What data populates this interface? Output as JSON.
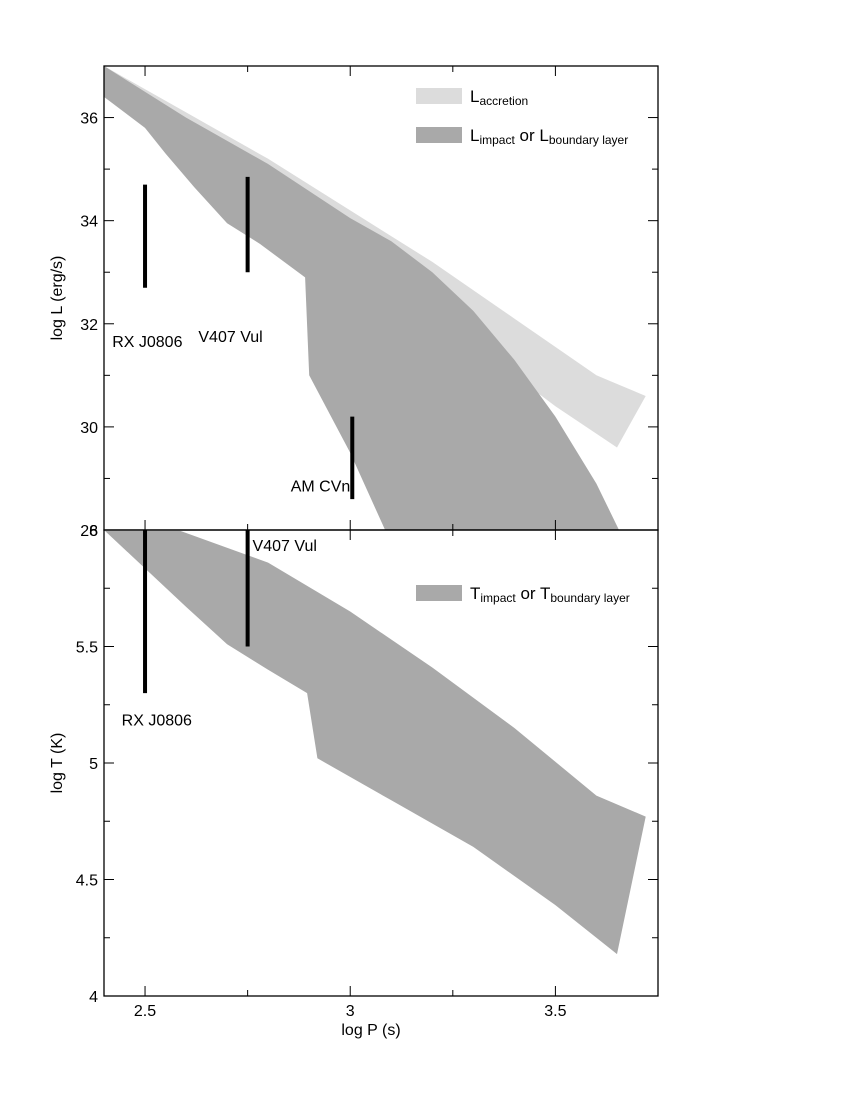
{
  "chart_data": [
    {
      "type": "area",
      "panel": "top",
      "xlim": [
        2.4,
        3.75
      ],
      "ylim": [
        28,
        37
      ],
      "ylabel": "log L (erg/s)",
      "yticks": [
        28,
        30,
        32,
        34,
        36
      ],
      "ytick_labels": [
        "28",
        "30",
        "32",
        "34",
        "36"
      ],
      "legend": {
        "placement": "top-right",
        "entries": [
          {
            "series": "accretion",
            "text": "L",
            "sub": "accretion",
            "text2": "",
            "sub2": ""
          },
          {
            "series": "impact",
            "text": "L",
            "sub": "impact",
            "text2": " or L",
            "sub2": "boundary layer"
          }
        ]
      },
      "series": [
        {
          "id": "accretion",
          "color": "#dcdcdc",
          "outline": [
            [
              2.4,
              37
            ],
            [
              2.6,
              36.1
            ],
            [
              2.8,
              35.2
            ],
            [
              3.0,
              34.2
            ],
            [
              3.2,
              33.2
            ],
            [
              3.4,
              32.1
            ],
            [
              3.6,
              31.0
            ],
            [
              3.72,
              30.6
            ],
            [
              3.65,
              29.6
            ],
            [
              3.5,
              30.4
            ],
            [
              3.3,
              31.6
            ],
            [
              3.1,
              32.8
            ],
            [
              2.9,
              33.9
            ],
            [
              2.7,
              35.0
            ],
            [
              2.5,
              36.0
            ],
            [
              2.4,
              36.4
            ]
          ]
        },
        {
          "id": "impact",
          "color": "#a9a9a9",
          "outline": [
            [
              2.4,
              37
            ],
            [
              2.6,
              36.0
            ],
            [
              2.8,
              35.1
            ],
            [
              3.0,
              34.05
            ],
            [
              3.1,
              33.6
            ],
            [
              3.2,
              33.0
            ],
            [
              3.3,
              32.25
            ],
            [
              3.4,
              31.3
            ],
            [
              3.5,
              30.2
            ],
            [
              3.6,
              28.9
            ],
            [
              3.655,
              28.0
            ],
            [
              3.085,
              28.0
            ],
            [
              3.0,
              29.5
            ],
            [
              2.9,
              31.0
            ],
            [
              2.89,
              32.9
            ],
            [
              2.78,
              33.55
            ],
            [
              2.7,
              33.95
            ],
            [
              2.62,
              34.65
            ],
            [
              2.55,
              35.3
            ],
            [
              2.5,
              35.8
            ],
            [
              2.4,
              36.4
            ]
          ]
        }
      ],
      "annotations": [
        {
          "label": "RX J0806",
          "x": 2.5,
          "y_range": [
            32.7,
            34.7
          ],
          "label_pos": [
            2.42,
            31.55
          ]
        },
        {
          "label": "V407 Vul",
          "x": 2.75,
          "y_range": [
            33.0,
            34.85
          ],
          "label_pos": [
            2.63,
            31.65
          ]
        },
        {
          "label": "AM CVn",
          "x": 3.005,
          "y_range": [
            28.6,
            30.2
          ],
          "label_pos": [
            2.855,
            28.75
          ]
        }
      ]
    },
    {
      "type": "area",
      "panel": "bottom",
      "xlim": [
        2.4,
        3.75
      ],
      "ylim": [
        4,
        6
      ],
      "xlabel": "log P (s)",
      "ylabel": "log T (K)",
      "xticks": [
        2.5,
        3,
        3.5
      ],
      "xtick_labels": [
        "2.5",
        "3",
        "3.5"
      ],
      "yticks": [
        4,
        4.5,
        5,
        5.5,
        6
      ],
      "ytick_labels": [
        "4",
        "4.5",
        "5",
        "5.5",
        "6"
      ],
      "legend": {
        "placement": "top-right",
        "entries": [
          {
            "series": "impact_T",
            "text": "T",
            "sub": "impact",
            "text2": " or T",
            "sub2": "boundary layer"
          }
        ]
      },
      "series": [
        {
          "id": "impact_T",
          "color": "#a9a9a9",
          "outline": [
            [
              2.4,
              6.0
            ],
            [
              2.58,
              6.0
            ],
            [
              2.8,
              5.86
            ],
            [
              3.0,
              5.65
            ],
            [
              3.2,
              5.41
            ],
            [
              3.4,
              5.15
            ],
            [
              3.6,
              4.86
            ],
            [
              3.72,
              4.77
            ],
            [
              3.65,
              4.18
            ],
            [
              3.5,
              4.39
            ],
            [
              3.3,
              4.64
            ],
            [
              3.1,
              4.84
            ],
            [
              2.92,
              5.02
            ],
            [
              2.895,
              5.3
            ],
            [
              2.8,
              5.4
            ],
            [
              2.7,
              5.51
            ],
            [
              2.6,
              5.67
            ],
            [
              2.4,
              6.0
            ]
          ]
        }
      ],
      "annotations": [
        {
          "label": "RX J0806",
          "x": 2.5,
          "y_range": [
            5.3,
            6.0
          ],
          "label_pos": [
            2.443,
            5.16
          ]
        },
        {
          "label": "V407 Vul",
          "x": 2.75,
          "y_range": [
            5.5,
            6.0
          ],
          "label_pos": [
            2.762,
            5.91
          ]
        }
      ]
    }
  ]
}
